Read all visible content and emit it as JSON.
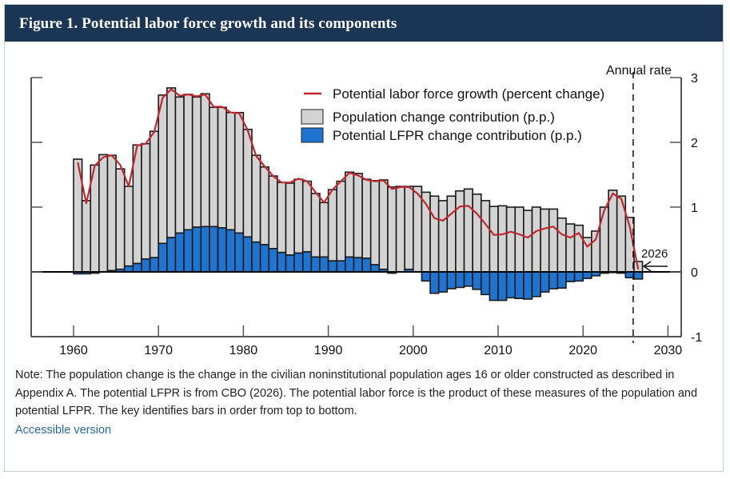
{
  "header": {
    "title": "Figure 1. Potential labor force growth and its components"
  },
  "note": "Note: The population change is the change in the civilian noninstitutional population ages 16 or older constructed as described in Appendix A. The potential LFPR is from CBO (2026). The potential labor force is the product of these measures of the population and potential LFPR. The key identifies bars in order from top to bottom.",
  "accessible_link": "Accessible version",
  "colors": {
    "header_bg": "#1a3654",
    "population_bar": "#d3d3d3",
    "lfpr_bar": "#1f74d0",
    "growth_line": "#c0282d",
    "link": "#2d6aa3"
  },
  "chart_data": {
    "type": "bar",
    "subtype": "stacked bar with line overlay",
    "title": "Figure 1. Potential labor force growth and its components",
    "ylabel": "Annual rate",
    "xlabel": "",
    "ylim": [
      -1,
      3
    ],
    "xlim": [
      1955,
      2031
    ],
    "yticks": [
      -1,
      0,
      1,
      2,
      3
    ],
    "xticks": [
      1960,
      1970,
      1980,
      1990,
      2000,
      2010,
      2020,
      2030
    ],
    "grid": false,
    "legend_position": "top-center",
    "legend": [
      {
        "name": "Potential labor force growth (percent change)",
        "kind": "line"
      },
      {
        "name": "Population change contribution (p.p.)",
        "kind": "bar"
      },
      {
        "name": "Potential LFPR change contribution (p.p.)",
        "kind": "bar"
      }
    ],
    "annotations": [
      {
        "text": "2026",
        "kind": "arrow-label",
        "target_year": 2026
      },
      {
        "text": "Annual rate",
        "kind": "axis-title"
      }
    ],
    "projection_marker_year": 2026,
    "x": [
      1960,
      1961,
      1962,
      1963,
      1964,
      1965,
      1966,
      1967,
      1968,
      1969,
      1970,
      1971,
      1972,
      1973,
      1974,
      1975,
      1976,
      1977,
      1978,
      1979,
      1980,
      1981,
      1982,
      1983,
      1984,
      1985,
      1986,
      1987,
      1988,
      1989,
      1990,
      1991,
      1992,
      1993,
      1994,
      1995,
      1996,
      1997,
      1998,
      1999,
      2000,
      2001,
      2002,
      2003,
      2004,
      2005,
      2006,
      2007,
      2008,
      2009,
      2010,
      2011,
      2012,
      2013,
      2014,
      2015,
      2016,
      2017,
      2018,
      2019,
      2020,
      2021,
      2022,
      2023,
      2024,
      2025,
      2026
    ],
    "series": [
      {
        "name": "Population change contribution (p.p.)",
        "values": [
          1.74,
          1.1,
          1.65,
          1.81,
          1.78,
          1.55,
          1.23,
          1.83,
          1.78,
          1.95,
          2.29,
          2.31,
          2.1,
          2.09,
          2.01,
          2.05,
          1.84,
          1.86,
          1.81,
          1.86,
          1.66,
          1.34,
          1.2,
          1.12,
          1.08,
          1.11,
          1.14,
          1.09,
          0.98,
          0.84,
          1.1,
          1.23,
          1.31,
          1.3,
          1.22,
          1.3,
          1.38,
          1.31,
          1.32,
          1.28,
          1.32,
          1.23,
          1.17,
          1.1,
          1.17,
          1.25,
          1.28,
          1.2,
          1.1,
          1.01,
          1.02,
          1.0,
          1.0,
          0.95,
          1.0,
          0.97,
          0.97,
          0.83,
          0.74,
          0.72,
          0.53,
          0.63,
          1.0,
          1.26,
          1.17,
          0.84,
          0.16
        ]
      },
      {
        "name": "Potential LFPR change contribution (p.p.)",
        "values": [
          -0.03,
          -0.03,
          -0.02,
          0.0,
          0.02,
          0.04,
          0.09,
          0.13,
          0.2,
          0.22,
          0.44,
          0.53,
          0.6,
          0.65,
          0.69,
          0.7,
          0.7,
          0.68,
          0.65,
          0.6,
          0.54,
          0.46,
          0.42,
          0.36,
          0.3,
          0.26,
          0.29,
          0.31,
          0.23,
          0.23,
          0.17,
          0.17,
          0.23,
          0.22,
          0.21,
          0.11,
          0.04,
          -0.02,
          0.0,
          0.04,
          0.0,
          -0.14,
          -0.33,
          -0.31,
          -0.26,
          -0.24,
          -0.22,
          -0.27,
          -0.35,
          -0.44,
          -0.44,
          -0.4,
          -0.41,
          -0.42,
          -0.38,
          -0.31,
          -0.26,
          -0.25,
          -0.15,
          -0.14,
          -0.1,
          -0.06,
          -0.02,
          -0.01,
          -0.02,
          -0.09,
          -0.11
        ]
      },
      {
        "name": "Potential labor force growth (percent change)",
        "values": [
          1.69,
          1.06,
          1.64,
          1.77,
          1.8,
          1.65,
          1.32,
          1.95,
          1.98,
          2.16,
          2.69,
          2.82,
          2.72,
          2.74,
          2.71,
          2.74,
          2.55,
          2.55,
          2.46,
          2.45,
          2.19,
          1.79,
          1.63,
          1.48,
          1.38,
          1.38,
          1.44,
          1.4,
          1.23,
          1.07,
          1.27,
          1.4,
          1.53,
          1.49,
          1.42,
          1.4,
          1.41,
          1.28,
          1.31,
          1.31,
          1.21,
          1.05,
          0.83,
          0.79,
          0.9,
          1.01,
          1.02,
          0.9,
          0.74,
          0.57,
          0.58,
          0.62,
          0.58,
          0.53,
          0.63,
          0.67,
          0.7,
          0.58,
          0.53,
          0.6,
          0.39,
          0.5,
          0.95,
          1.21,
          1.13,
          0.7,
          0.04
        ]
      }
    ]
  }
}
